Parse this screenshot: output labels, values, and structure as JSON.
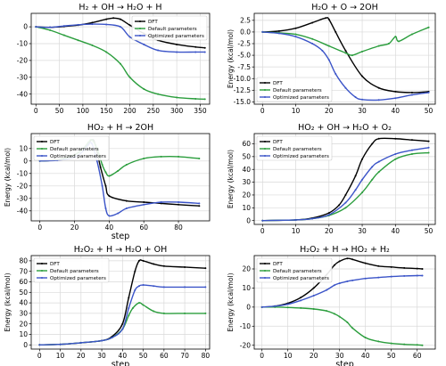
{
  "colors": {
    "dft": "#000000",
    "default": "#2a9d3c",
    "optimized": "#3b54c8",
    "grid": "#d9d9d9",
    "legend_border": "#cccccc"
  },
  "chart_data": [
    {
      "type": "line",
      "title": "H₂ + OH → H₂O + H",
      "xlabel": "",
      "ylabel": "",
      "xlim": [
        -10,
        370
      ],
      "ylim": [
        -46,
        8
      ],
      "xticks": [
        0,
        50,
        100,
        150,
        200,
        250,
        300,
        350
      ],
      "yticks": [
        0,
        -10,
        -20,
        -30,
        -40
      ],
      "legend_position": "top-right",
      "series": [
        {
          "name": "DFT",
          "x": [
            0,
            30,
            60,
            90,
            120,
            150,
            165,
            180,
            200,
            230,
            260,
            300,
            340,
            360
          ],
          "y": [
            0,
            -0.3,
            0.2,
            1,
            2.5,
            4.5,
            5.2,
            4.5,
            1,
            -4,
            -8,
            -10.5,
            -12,
            -12.5
          ]
        },
        {
          "name": "Default parameters",
          "x": [
            0,
            30,
            60,
            90,
            120,
            150,
            180,
            200,
            230,
            260,
            300,
            340,
            360
          ],
          "y": [
            0,
            -2,
            -5,
            -8,
            -11,
            -15,
            -22,
            -30,
            -37,
            -40,
            -42,
            -42.8,
            -43
          ]
        },
        {
          "name": "Optimized parameters",
          "x": [
            0,
            30,
            60,
            90,
            120,
            150,
            180,
            200,
            230,
            260,
            300,
            340,
            360
          ],
          "y": [
            0,
            -0.3,
            0.5,
            1.2,
            1.6,
            1.4,
            0,
            -6,
            -10.5,
            -14,
            -15,
            -15,
            -15
          ]
        }
      ]
    },
    {
      "type": "line",
      "title": "H₂O + O → 2OH",
      "xlabel": "",
      "ylabel": "Energy (kcal/mol)",
      "xlim": [
        -2.5,
        52
      ],
      "ylim": [
        -15.5,
        4
      ],
      "xticks": [
        0,
        10,
        20,
        30,
        40,
        50
      ],
      "yticks": [
        2.5,
        0.0,
        -2.5,
        -5.0,
        -7.5,
        -10.0,
        -12.5,
        -15.0
      ],
      "legend_position": "lower-left",
      "series": [
        {
          "name": "DFT",
          "x": [
            0,
            5,
            10,
            15,
            19,
            20,
            22,
            25,
            30,
            35,
            40,
            45,
            50
          ],
          "y": [
            0,
            0.2,
            0.8,
            2,
            3,
            2.7,
            0,
            -4,
            -9.5,
            -12,
            -12.8,
            -13,
            -12.8
          ]
        },
        {
          "name": "Default parameters",
          "x": [
            0,
            5,
            10,
            15,
            20,
            25,
            27,
            30,
            35,
            38,
            40,
            41,
            45,
            50
          ],
          "y": [
            0,
            -0.2,
            -0.5,
            -1.5,
            -3,
            -4.5,
            -5,
            -4.2,
            -3,
            -2.5,
            -1,
            -2,
            -0.5,
            1
          ]
        },
        {
          "name": "Optimized parameters",
          "x": [
            0,
            5,
            10,
            15,
            18,
            20,
            22,
            25,
            28,
            30,
            35,
            40,
            45,
            50
          ],
          "y": [
            0,
            -0.3,
            -1,
            -2.5,
            -4,
            -6,
            -9,
            -12,
            -14,
            -14.5,
            -14.6,
            -14.2,
            -13.5,
            -13
          ]
        }
      ]
    },
    {
      "type": "line",
      "title": "HO₂ + H → 2OH",
      "xlabel": "step",
      "ylabel": "Energy (kcal/mol)",
      "xlim": [
        -5,
        98
      ],
      "ylim": [
        -48,
        22
      ],
      "xticks": [
        0,
        20,
        40,
        60,
        80
      ],
      "yticks": [
        10,
        0,
        -10,
        -20,
        -30,
        -40
      ],
      "legend_position": "top-left",
      "series": [
        {
          "name": "DFT",
          "x": [
            0,
            10,
            20,
            25,
            30,
            32,
            35,
            38,
            40,
            50,
            60,
            70,
            80,
            92
          ],
          "y": [
            0,
            1,
            5,
            10,
            17,
            13,
            -5,
            -20,
            -28,
            -32,
            -33,
            -34,
            -35,
            -36
          ]
        },
        {
          "name": "Default parameters",
          "x": [
            0,
            10,
            20,
            25,
            28,
            30,
            33,
            36,
            38,
            40,
            45,
            50,
            60,
            70,
            80,
            92
          ],
          "y": [
            0,
            1,
            5,
            10,
            15,
            17,
            10,
            -3,
            -9,
            -12,
            -8,
            -3,
            2,
            3.5,
            3.5,
            2
          ]
        },
        {
          "name": "Optimized parameters",
          "x": [
            0,
            10,
            20,
            25,
            28,
            30,
            33,
            36,
            38,
            40,
            45,
            50,
            60,
            70,
            80,
            92
          ],
          "y": [
            0,
            0.5,
            3,
            8,
            13,
            14,
            0,
            -20,
            -38,
            -44,
            -42,
            -38,
            -35,
            -33,
            -33,
            -34
          ]
        }
      ]
    },
    {
      "type": "line",
      "title": "HO₂ + OH → H₂O + O₂",
      "xlabel": "",
      "ylabel": "Energy (kcal/mol)",
      "xlim": [
        -2.5,
        52
      ],
      "ylim": [
        -3,
        68
      ],
      "xticks": [
        0,
        10,
        20,
        30,
        40,
        50
      ],
      "yticks": [
        0,
        10,
        20,
        30,
        40,
        50,
        60
      ],
      "legend_position": "top-left",
      "series": [
        {
          "name": "DFT",
          "x": [
            0,
            10,
            15,
            20,
            23,
            25,
            28,
            30,
            33,
            35,
            40,
            45,
            50
          ],
          "y": [
            0,
            0.5,
            2,
            6,
            12,
            20,
            35,
            48,
            60,
            64,
            64,
            63,
            62
          ]
        },
        {
          "name": "Default parameters",
          "x": [
            0,
            10,
            15,
            20,
            25,
            30,
            33,
            35,
            40,
            45,
            50
          ],
          "y": [
            0,
            0.5,
            1.5,
            4,
            10,
            22,
            32,
            38,
            48,
            52,
            53
          ]
        },
        {
          "name": "Optimized parameters",
          "x": [
            0,
            10,
            15,
            20,
            25,
            28,
            30,
            33,
            35,
            40,
            45,
            50
          ],
          "y": [
            0,
            0.5,
            1.5,
            4.5,
            14,
            24,
            32,
            42,
            46,
            52,
            55,
            57
          ]
        }
      ]
    },
    {
      "type": "line",
      "title": "H₂O₂ + H → H₂O + OH",
      "xlabel": "step",
      "ylabel": "Energy (kcal/mol)",
      "xlim": [
        -4,
        82
      ],
      "ylim": [
        -4,
        85
      ],
      "xticks": [
        0,
        10,
        20,
        30,
        40,
        50,
        60,
        70,
        80
      ],
      "yticks": [
        0,
        10,
        20,
        30,
        40,
        50,
        60,
        70,
        80
      ],
      "legend_position": "top-left",
      "series": [
        {
          "name": "DFT",
          "x": [
            0,
            10,
            20,
            30,
            35,
            40,
            43,
            46,
            48,
            50,
            55,
            60,
            70,
            80
          ],
          "y": [
            0,
            0.5,
            2,
            4,
            8,
            20,
            45,
            70,
            80,
            80,
            77,
            75,
            74,
            73
          ]
        },
        {
          "name": "Default parameters",
          "x": [
            0,
            10,
            20,
            30,
            35,
            40,
            43,
            45,
            48,
            50,
            55,
            60,
            70,
            80
          ],
          "y": [
            0,
            0.5,
            2,
            4,
            7,
            15,
            28,
            35,
            40,
            38,
            32,
            30,
            30,
            30
          ]
        },
        {
          "name": "Optimized parameters",
          "x": [
            0,
            10,
            20,
            30,
            35,
            40,
            43,
            46,
            48,
            50,
            55,
            60,
            70,
            80
          ],
          "y": [
            0,
            0.5,
            2,
            4,
            7,
            15,
            35,
            52,
            56,
            57,
            56,
            55,
            55,
            55
          ]
        }
      ]
    },
    {
      "type": "line",
      "title": "H₂O₂ + H → HO₂ + H₂",
      "xlabel": "step",
      "ylabel": "Energy (kcal/mol)",
      "xlim": [
        -3,
        67
      ],
      "ylim": [
        -22,
        27
      ],
      "xticks": [
        0,
        10,
        20,
        30,
        40,
        50,
        60
      ],
      "yticks": [
        20,
        10,
        0,
        -10,
        -20
      ],
      "legend_position": "top-left",
      "series": [
        {
          "name": "DFT",
          "x": [
            0,
            5,
            10,
            15,
            20,
            25,
            28,
            30,
            33,
            35,
            40,
            45,
            50,
            55,
            60,
            62
          ],
          "y": [
            0,
            0.5,
            2,
            5,
            10,
            17,
            22,
            24,
            25.5,
            25,
            23,
            21.5,
            21,
            20.5,
            20.2,
            20
          ]
        },
        {
          "name": "Default parameters",
          "x": [
            0,
            5,
            10,
            15,
            20,
            25,
            28,
            30,
            33,
            35,
            40,
            45,
            50,
            55,
            60,
            62
          ],
          "y": [
            0,
            0,
            -0.2,
            -0.5,
            -1,
            -2,
            -3.5,
            -5,
            -8,
            -11,
            -16,
            -18,
            -19,
            -19.5,
            -19.8,
            -20
          ]
        },
        {
          "name": "Optimized parameters",
          "x": [
            0,
            5,
            10,
            15,
            20,
            25,
            28,
            30,
            33,
            35,
            40,
            45,
            50,
            55,
            60,
            62
          ],
          "y": [
            0,
            0.5,
            1.5,
            3.5,
            6,
            9,
            11.5,
            12.5,
            13.5,
            14,
            15,
            15.5,
            16,
            16.3,
            16.5,
            16.5
          ]
        }
      ]
    }
  ]
}
